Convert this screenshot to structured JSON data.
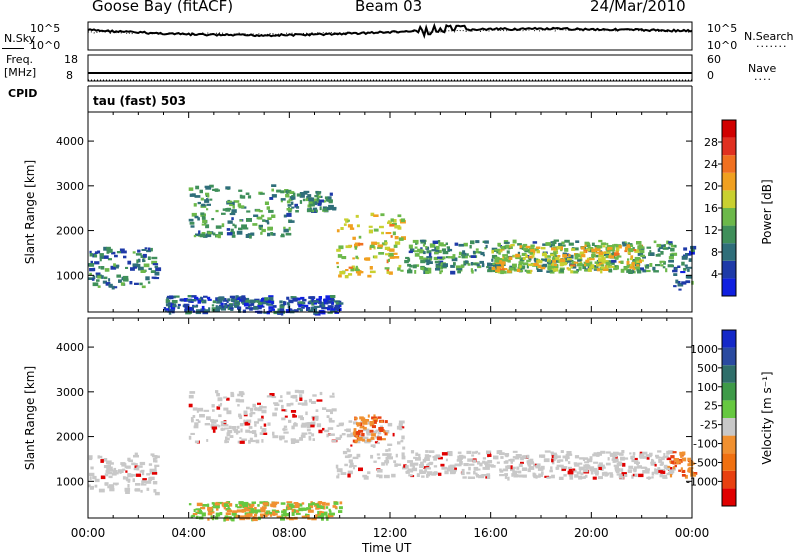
{
  "header": {
    "station": "Goose Bay (fitACF)",
    "beam": "Beam 03",
    "date": "24/Mar/2010"
  },
  "top_panels": {
    "nsky_label": "N.Sky",
    "nsky_tick_hi": "10^5",
    "nsky_tick_lo": "10^0",
    "nsearch_label": "N.Search",
    "nsearch_tick_hi": "10^5",
    "nsearch_tick_lo": "10^0",
    "freq_label_1": "Freq.",
    "freq_label_2": "[MHz]",
    "freq_tick_hi": "18",
    "freq_tick_lo": "8",
    "nave_label": "Nave",
    "nave_tick_hi": "60",
    "nave_tick_lo": "0",
    "cpid_label": "CPID",
    "cpid_value": "tau (fast) 503"
  },
  "colors": {
    "power_scale": [
      "#1020e0",
      "#1e3aa8",
      "#2f6e7a",
      "#3f8f5a",
      "#6cb84a",
      "#c9d030",
      "#f0a020",
      "#f07020",
      "#e03020",
      "#d00000"
    ],
    "velocity_scale": [
      "#1428c8",
      "#2a4aa0",
      "#2f6e6a",
      "#3e9a48",
      "#66c840",
      "#c8c8c8",
      "#f09030",
      "#f07010",
      "#e84010",
      "#e00000"
    ],
    "ground_scatter": "#c8c8c8",
    "backscatter_main": "#2f5fa0"
  },
  "chart_data": [
    {
      "type": "heatmap",
      "panel": "power",
      "ylabel": "Slant Range [km]",
      "yticks": [
        "1000",
        "2000",
        "3000",
        "4000"
      ],
      "ylim": [
        180,
        4650
      ],
      "xlim_hours": [
        0,
        24
      ],
      "colorbar_label": "Power [dB]",
      "colorbar_ticks": [
        "4",
        "8",
        "12",
        "16",
        "20",
        "24",
        "28"
      ],
      "colorbar_range": [
        0,
        32
      ],
      "regions": [
        {
          "t": [
            0.0,
            2.7
          ],
          "r": [
            750,
            1650
          ],
          "level": 9
        },
        {
          "t": [
            4.0,
            8.0
          ],
          "r": [
            1900,
            3050
          ],
          "level": 11
        },
        {
          "t": [
            7.8,
            9.7
          ],
          "r": [
            2450,
            2900
          ],
          "level": 10
        },
        {
          "t": [
            9.8,
            12.5
          ],
          "r": [
            1000,
            2400
          ],
          "level": 18
        },
        {
          "t": [
            12.5,
            23.2
          ],
          "r": [
            1100,
            1800
          ],
          "level": 11
        },
        {
          "t": [
            16.0,
            22.0
          ],
          "r": [
            1100,
            1700
          ],
          "level": 18
        },
        {
          "t": [
            23.2,
            24.0
          ],
          "r": [
            700,
            1700
          ],
          "level": 8
        },
        {
          "t": [
            3.0,
            10.0
          ],
          "r": [
            180,
            560
          ],
          "level": 6
        }
      ]
    },
    {
      "type": "heatmap",
      "panel": "velocity",
      "ylabel": "Slant Range [km]",
      "xlabel": "Time UT",
      "yticks": [
        "1000",
        "2000",
        "3000",
        "4000"
      ],
      "xticks": [
        "00:00",
        "04:00",
        "08:00",
        "12:00",
        "16:00",
        "20:00",
        "00:00"
      ],
      "ylim": [
        180,
        4650
      ],
      "xlim_hours": [
        0,
        24
      ],
      "colorbar_label": "Velocity [m s⁻¹]",
      "colorbar_ticks": [
        "1000",
        "500",
        "100",
        "25",
        "-25",
        "-100",
        "-500",
        "-1000"
      ],
      "regions": [
        {
          "t": [
            0.0,
            2.7
          ],
          "r": [
            750,
            1650
          ],
          "level": 0
        },
        {
          "t": [
            4.0,
            9.7
          ],
          "r": [
            1900,
            3050
          ],
          "level": 0
        },
        {
          "t": [
            9.8,
            12.5
          ],
          "r": [
            1100,
            2400
          ],
          "level": 0
        },
        {
          "t": [
            12.5,
            23.2
          ],
          "r": [
            1100,
            1700
          ],
          "level": 0
        },
        {
          "t": [
            10.5,
            11.8
          ],
          "r": [
            1900,
            2500
          ],
          "level": -150
        },
        {
          "t": [
            23.0,
            24.0
          ],
          "r": [
            1100,
            1700
          ],
          "level": -300
        },
        {
          "t": [
            4.0,
            10.0
          ],
          "r": [
            180,
            560
          ],
          "level": -40
        }
      ]
    }
  ],
  "axes": {
    "xlabel": "Time UT",
    "xticks": [
      "00:00",
      "04:00",
      "08:00",
      "12:00",
      "16:00",
      "20:00",
      "00:00"
    ],
    "ylabel": "Slant Range [km]",
    "yticks": [
      "1000",
      "2000",
      "3000",
      "4000"
    ],
    "power_label": "Power [dB]",
    "velocity_label": "Velocity [m s⁻¹]",
    "power_ticks": [
      "4",
      "8",
      "12",
      "16",
      "20",
      "24",
      "28"
    ],
    "velocity_ticks": [
      "1000",
      "500",
      "100",
      "25",
      "-25",
      "-100",
      "-500",
      "-1000"
    ]
  }
}
